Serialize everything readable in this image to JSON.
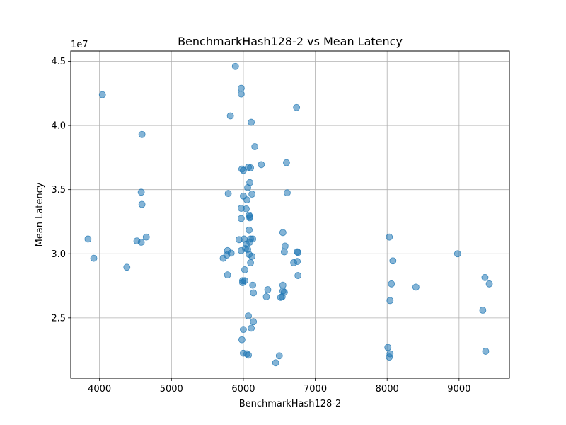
{
  "chart_data": {
    "type": "scatter",
    "title": "BenchmarkHash128-2 vs Mean Latency",
    "xlabel": "BenchmarkHash128-2",
    "ylabel": "Mean Latency",
    "y_offset_label": "1e7",
    "xlim": [
      3600,
      9700
    ],
    "ylim": [
      20300000,
      45800000
    ],
    "xticks": [
      4000,
      5000,
      6000,
      7000,
      8000,
      9000
    ],
    "yticks": [
      25000000,
      30000000,
      35000000,
      40000000,
      45000000
    ],
    "ytick_labels": [
      "2.5",
      "3.0",
      "3.5",
      "4.0",
      "4.5"
    ],
    "grid": true,
    "marker_color": "#1f77b4",
    "marker_alpha": 0.55,
    "points": [
      {
        "x": 3840,
        "y": 31150000
      },
      {
        "x": 3920,
        "y": 29650000
      },
      {
        "x": 4040,
        "y": 42400000
      },
      {
        "x": 4380,
        "y": 28950000
      },
      {
        "x": 4520,
        "y": 31000000
      },
      {
        "x": 4580,
        "y": 30900000
      },
      {
        "x": 4580,
        "y": 34800000
      },
      {
        "x": 4590,
        "y": 33850000
      },
      {
        "x": 4590,
        "y": 39300000
      },
      {
        "x": 4650,
        "y": 31300000
      },
      {
        "x": 5720,
        "y": 29650000
      },
      {
        "x": 5770,
        "y": 29900000
      },
      {
        "x": 5780,
        "y": 30250000
      },
      {
        "x": 5780,
        "y": 28350000
      },
      {
        "x": 5790,
        "y": 34700000
      },
      {
        "x": 5820,
        "y": 40750000
      },
      {
        "x": 5830,
        "y": 30050000
      },
      {
        "x": 5890,
        "y": 44600000
      },
      {
        "x": 5940,
        "y": 31100000
      },
      {
        "x": 5970,
        "y": 42900000
      },
      {
        "x": 5970,
        "y": 42450000
      },
      {
        "x": 5970,
        "y": 33550000
      },
      {
        "x": 5970,
        "y": 32750000
      },
      {
        "x": 5970,
        "y": 30250000
      },
      {
        "x": 5980,
        "y": 36600000
      },
      {
        "x": 5980,
        "y": 23300000
      },
      {
        "x": 5990,
        "y": 27900000
      },
      {
        "x": 5990,
        "y": 27750000
      },
      {
        "x": 6000,
        "y": 36500000
      },
      {
        "x": 6000,
        "y": 34500000
      },
      {
        "x": 6000,
        "y": 24100000
      },
      {
        "x": 6000,
        "y": 22250000
      },
      {
        "x": 6010,
        "y": 31150000
      },
      {
        "x": 6020,
        "y": 28750000
      },
      {
        "x": 6020,
        "y": 27900000
      },
      {
        "x": 6030,
        "y": 30400000
      },
      {
        "x": 6040,
        "y": 33500000
      },
      {
        "x": 6040,
        "y": 30750000
      },
      {
        "x": 6050,
        "y": 34200000
      },
      {
        "x": 6050,
        "y": 22200000
      },
      {
        "x": 6060,
        "y": 35150000
      },
      {
        "x": 6060,
        "y": 30350000
      },
      {
        "x": 6070,
        "y": 36750000
      },
      {
        "x": 6070,
        "y": 25150000
      },
      {
        "x": 6070,
        "y": 22100000
      },
      {
        "x": 6080,
        "y": 33000000
      },
      {
        "x": 6080,
        "y": 31850000
      },
      {
        "x": 6080,
        "y": 29950000
      },
      {
        "x": 6090,
        "y": 35550000
      },
      {
        "x": 6090,
        "y": 32900000
      },
      {
        "x": 6090,
        "y": 32800000
      },
      {
        "x": 6090,
        "y": 30900000
      },
      {
        "x": 6100,
        "y": 36700000
      },
      {
        "x": 6100,
        "y": 31150000
      },
      {
        "x": 6100,
        "y": 29300000
      },
      {
        "x": 6110,
        "y": 40250000
      },
      {
        "x": 6110,
        "y": 24200000
      },
      {
        "x": 6120,
        "y": 34650000
      },
      {
        "x": 6120,
        "y": 29800000
      },
      {
        "x": 6130,
        "y": 31150000
      },
      {
        "x": 6130,
        "y": 27550000
      },
      {
        "x": 6140,
        "y": 26950000
      },
      {
        "x": 6140,
        "y": 24700000
      },
      {
        "x": 6160,
        "y": 38350000
      },
      {
        "x": 6250,
        "y": 36950000
      },
      {
        "x": 6320,
        "y": 26650000
      },
      {
        "x": 6340,
        "y": 27200000
      },
      {
        "x": 6450,
        "y": 21500000
      },
      {
        "x": 6500,
        "y": 22050000
      },
      {
        "x": 6520,
        "y": 26600000
      },
      {
        "x": 6540,
        "y": 26650000
      },
      {
        "x": 6550,
        "y": 31650000
      },
      {
        "x": 6550,
        "y": 27550000
      },
      {
        "x": 6550,
        "y": 27100000
      },
      {
        "x": 6570,
        "y": 30150000
      },
      {
        "x": 6570,
        "y": 27000000
      },
      {
        "x": 6580,
        "y": 30600000
      },
      {
        "x": 6600,
        "y": 37100000
      },
      {
        "x": 6610,
        "y": 34750000
      },
      {
        "x": 6700,
        "y": 29300000
      },
      {
        "x": 6740,
        "y": 41400000
      },
      {
        "x": 6750,
        "y": 30150000
      },
      {
        "x": 6750,
        "y": 29400000
      },
      {
        "x": 6760,
        "y": 30100000
      },
      {
        "x": 6760,
        "y": 28300000
      },
      {
        "x": 8010,
        "y": 22700000
      },
      {
        "x": 8030,
        "y": 31300000
      },
      {
        "x": 8030,
        "y": 21950000
      },
      {
        "x": 8040,
        "y": 26350000
      },
      {
        "x": 8040,
        "y": 22200000
      },
      {
        "x": 8060,
        "y": 27650000
      },
      {
        "x": 8080,
        "y": 29450000
      },
      {
        "x": 8400,
        "y": 27400000
      },
      {
        "x": 8980,
        "y": 30000000
      },
      {
        "x": 9330,
        "y": 25600000
      },
      {
        "x": 9360,
        "y": 28150000
      },
      {
        "x": 9370,
        "y": 22400000
      },
      {
        "x": 9420,
        "y": 27650000
      }
    ]
  }
}
